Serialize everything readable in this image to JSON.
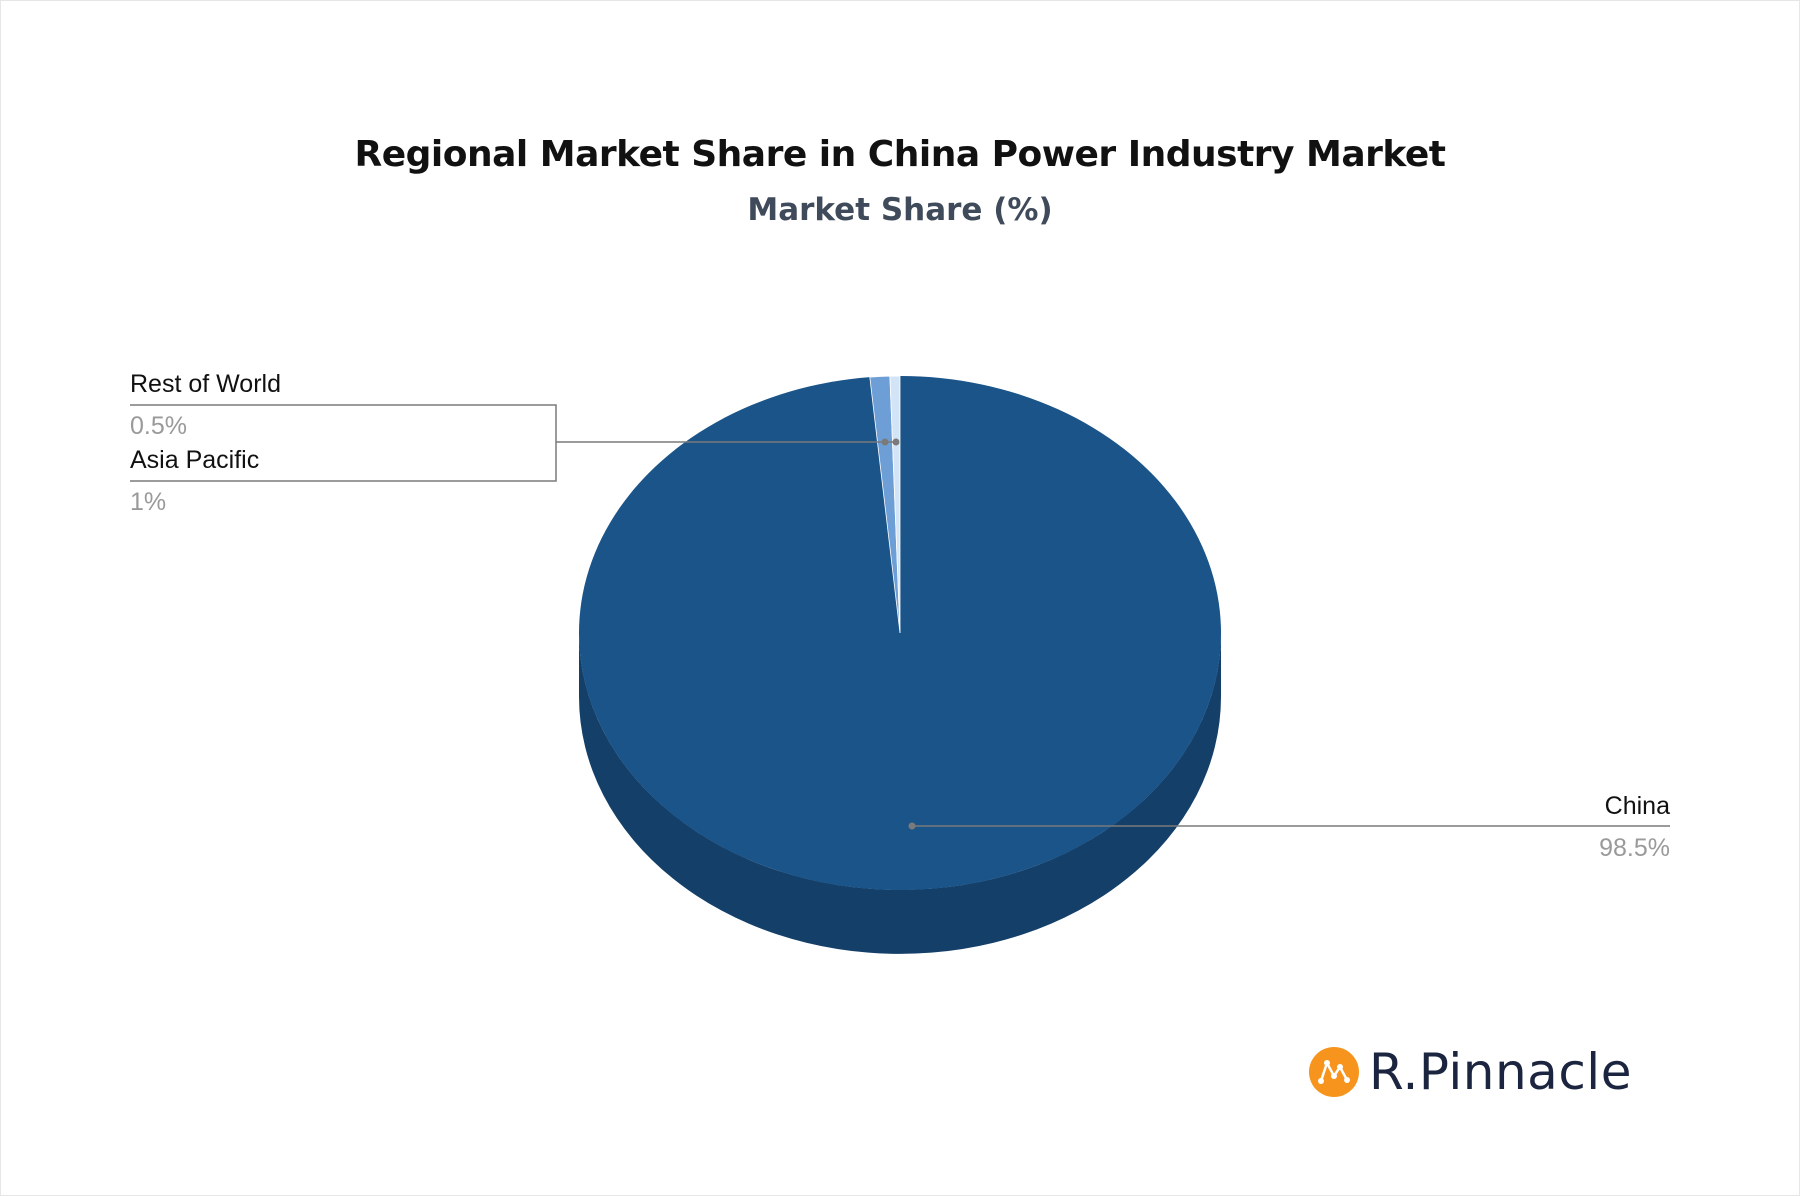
{
  "chart_data": {
    "type": "pie",
    "title": "Regional Market Share in China Power Industry Market",
    "subtitle": "Market Share (%)",
    "slices": [
      {
        "label": "China",
        "value": 98.5,
        "value_label": "98.5%",
        "color": "#1a5489",
        "side_color": "#143f69"
      },
      {
        "label": "Asia Pacific",
        "value": 1,
        "value_label": "1%",
        "color": "#6d9fd6",
        "side_color": "#4f7fb5"
      },
      {
        "label": "Rest of World",
        "value": 0.5,
        "value_label": "0.5%",
        "color": "#d4e4f7",
        "side_color": "#a9c3e3"
      }
    ]
  },
  "brand": {
    "name": "R.Pinnacle",
    "accent": "#f7941d"
  }
}
